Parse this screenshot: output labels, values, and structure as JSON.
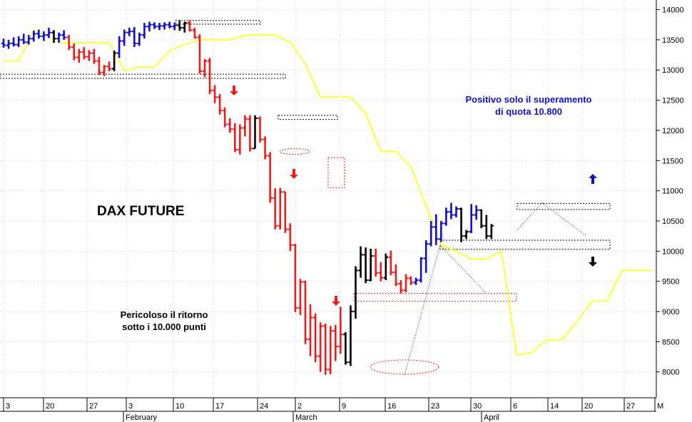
{
  "chart_data": {
    "type": "ohlc",
    "title": "DAX FUTURE",
    "yaxis": {
      "ticks": [
        8000,
        8500,
        9000,
        9500,
        10000,
        10500,
        11000,
        11500,
        12000,
        12500,
        13000,
        13500,
        14000
      ],
      "ylim": [
        7550,
        14070
      ],
      "position": "right"
    },
    "xaxis": {
      "day_ticks": [
        "3",
        "20",
        "27",
        "3",
        "10",
        "17",
        "24",
        "2",
        "9",
        "16",
        "23",
        "30",
        "6",
        "14",
        "20",
        "27",
        "M"
      ],
      "month_labels": [
        "February",
        "March",
        "April"
      ]
    },
    "grid": true,
    "colors": {
      "up": "#1010cc",
      "down": "#ee1c1c",
      "neutral": "#000000",
      "stop_line": "#ffff33"
    },
    "annotations": [
      {
        "id": "note-positive",
        "text": [
          "Positivo solo il superamento",
          "di quota 10.800"
        ],
        "color": "#1010cc"
      },
      {
        "id": "note-danger",
        "text": [
          "Pericoloso il ritorno",
          "sotto i 10.000 punti"
        ],
        "color": "#000000"
      }
    ],
    "series": [
      {
        "color": "blue",
        "bars": [
          [
            13440,
            13520,
            13370,
            13410
          ],
          [
            13410,
            13500,
            13350,
            13440
          ],
          [
            13440,
            13540,
            13390,
            13420
          ],
          [
            13420,
            13560,
            13380,
            13500
          ],
          [
            13500,
            13600,
            13430,
            13460
          ],
          [
            13460,
            13580,
            13420,
            13520
          ],
          [
            13520,
            13650,
            13470,
            13600
          ],
          [
            13600,
            13670,
            13520,
            13560
          ],
          [
            13560,
            13640,
            13480,
            13580
          ],
          [
            13580,
            13700,
            13530,
            13620
          ]
        ]
      },
      {
        "color": "black",
        "bars": [
          [
            13620,
            13660,
            13450,
            13520
          ]
        ]
      },
      {
        "color": "blue",
        "bars": [
          [
            13520,
            13620,
            13450,
            13580
          ],
          [
            13580,
            13660,
            13500,
            13540
          ]
        ]
      },
      {
        "color": "red",
        "bars": [
          [
            13540,
            13580,
            13330,
            13380
          ],
          [
            13380,
            13440,
            13160,
            13210
          ],
          [
            13210,
            13350,
            13120,
            13300
          ],
          [
            13300,
            13380,
            13180,
            13220
          ],
          [
            13220,
            13330,
            13150,
            13280
          ],
          [
            13280,
            13350,
            13100,
            13150
          ],
          [
            13150,
            13220,
            12920,
            12960
          ],
          [
            12960,
            13080,
            12900,
            13060
          ],
          [
            13060,
            13140,
            12980,
            13020
          ]
        ]
      },
      {
        "color": "black",
        "bars": [
          [
            13020,
            13320,
            12980,
            13280
          ]
        ]
      },
      {
        "color": "blue",
        "bars": [
          [
            13280,
            13560,
            13200,
            13480
          ],
          [
            13480,
            13670,
            13400,
            13620
          ],
          [
            13620,
            13700,
            13560,
            13640
          ],
          [
            13640,
            13710,
            13380,
            13440
          ],
          [
            13440,
            13620,
            13400,
            13580
          ],
          [
            13580,
            13780,
            13520,
            13720
          ],
          [
            13720,
            13800,
            13640,
            13750
          ],
          [
            13750,
            13790,
            13680,
            13720
          ],
          [
            13720,
            13780,
            13660,
            13730
          ],
          [
            13730,
            13790,
            13670,
            13750
          ],
          [
            13750,
            13800,
            13690,
            13720
          ],
          [
            13720,
            13780,
            13660,
            13740
          ]
        ]
      },
      {
        "color": "black",
        "bars": [
          [
            13740,
            13820,
            13650,
            13700
          ],
          [
            13700,
            13800,
            13620,
            13780
          ]
        ]
      },
      {
        "color": "red",
        "bars": [
          [
            13780,
            13820,
            13640,
            13660
          ],
          [
            13660,
            13700,
            13520,
            13540
          ],
          [
            13540,
            13590,
            12940,
            12980
          ],
          [
            12980,
            13180,
            12880,
            13150
          ],
          [
            13150,
            13200,
            12600,
            12660
          ],
          [
            12660,
            12750,
            12450,
            12550
          ],
          [
            12550,
            12600,
            12260,
            12330
          ],
          [
            12330,
            12380,
            12050,
            12100
          ],
          [
            12100,
            12200,
            11960,
            12020
          ],
          [
            12020,
            12120,
            11640,
            11680
          ],
          [
            11680,
            12100,
            11600,
            12040
          ],
          [
            12040,
            12250,
            11900,
            12190
          ],
          [
            12190,
            12250,
            11650,
            11700
          ]
        ]
      },
      {
        "color": "black",
        "bars": [
          [
            11700,
            12250,
            11700,
            12200
          ]
        ]
      },
      {
        "color": "red",
        "bars": [
          [
            12200,
            12230,
            11800,
            11850
          ],
          [
            11850,
            11900,
            11520,
            11580
          ],
          [
            11580,
            11640,
            10800,
            10880
          ],
          [
            10880,
            11040,
            10360,
            10420
          ],
          [
            10420,
            11050,
            10360,
            10980
          ],
          [
            10980,
            10980,
            10300,
            10360
          ],
          [
            10360,
            10460,
            10000,
            10100
          ],
          [
            10100,
            10120,
            8990,
            9060
          ],
          [
            9060,
            9540,
            8940,
            9490
          ],
          [
            9490,
            9510,
            8460,
            8540
          ],
          [
            8540,
            9120,
            8260,
            8900
          ],
          [
            8900,
            8970,
            8160,
            8260
          ],
          [
            8260,
            8820,
            8000,
            8760
          ],
          [
            8760,
            8800,
            7950,
            8040
          ],
          [
            8040,
            8760,
            7960,
            8680
          ],
          [
            8680,
            8780,
            8180,
            8420
          ],
          [
            8420,
            9080,
            8300,
            8620
          ]
        ]
      },
      {
        "color": "black",
        "bars": [
          [
            8620,
            8660,
            8120,
            8160
          ],
          [
            8160,
            9100,
            8100,
            9000
          ],
          [
            9000,
            9750,
            8880,
            9680
          ],
          [
            9680,
            10080,
            9560,
            9940
          ],
          [
            9940,
            10060,
            9470,
            9520
          ],
          [
            9520,
            10040,
            9500,
            9920
          ]
        ]
      },
      {
        "color": "red",
        "bars": [
          [
            9920,
            10040,
            9580,
            9640
          ],
          [
            9640,
            9820,
            9500,
            9560
          ]
        ]
      },
      {
        "color": "black",
        "bars": [
          [
            9560,
            9960,
            9520,
            9900
          ]
        ]
      },
      {
        "color": "red",
        "bars": [
          [
            9900,
            10010,
            9600,
            9650
          ],
          [
            9650,
            9780,
            9420,
            9460
          ],
          [
            9460,
            9520,
            9300,
            9350
          ],
          [
            9350,
            9620,
            9320,
            9550
          ],
          [
            9550,
            9580,
            9440,
            9480
          ]
        ]
      },
      {
        "color": "blue",
        "bars": [
          [
            9480,
            9560,
            9440,
            9520
          ],
          [
            9520,
            9900,
            9480,
            9880
          ],
          [
            9880,
            10180,
            9640,
            10120
          ],
          [
            10120,
            10500,
            10080,
            10400
          ],
          [
            10400,
            10610,
            10100,
            10200
          ],
          [
            10200,
            10500,
            10150,
            10460
          ]
        ]
      },
      {
        "color": "blue",
        "bars": [
          [
            10460,
            10720,
            10420,
            10650
          ],
          [
            10650,
            10800,
            10530,
            10600
          ],
          [
            10600,
            10740,
            10560,
            10700
          ]
        ]
      },
      {
        "color": "black",
        "bars": [
          [
            10700,
            10720,
            10150,
            10250
          ],
          [
            10250,
            10350,
            10200,
            10320
          ]
        ]
      },
      {
        "color": "blue",
        "bars": [
          [
            10320,
            10780,
            10300,
            10600
          ],
          [
            10600,
            10760,
            10520,
            10680
          ]
        ]
      },
      {
        "color": "black",
        "bars": [
          [
            10680,
            10690,
            10380,
            10420
          ],
          [
            10420,
            10600,
            10200,
            10250
          ],
          [
            10250,
            10450,
            10200,
            10420
          ]
        ]
      }
    ],
    "stop_line": [
      [
        13150,
        13150
      ],
      [
        13150,
        13650
      ],
      [
        13650,
        13550
      ],
      [
        13550,
        13450
      ],
      [
        13450,
        13450
      ],
      [
        13450,
        13450
      ],
      [
        13450,
        13450
      ],
      [
        13450,
        13000
      ],
      [
        13000,
        13050
      ],
      [
        13050,
        13050
      ],
      [
        13050,
        13320
      ],
      [
        13320,
        13420
      ],
      [
        13420,
        13500
      ],
      [
        13500,
        13500
      ],
      [
        13500,
        13500
      ],
      [
        13500,
        13580
      ],
      [
        13580,
        13580
      ],
      [
        13580,
        13580
      ],
      [
        13580,
        13460
      ],
      [
        13460,
        13100
      ],
      [
        13100,
        12550
      ],
      [
        12550,
        12550
      ],
      [
        12550,
        12550
      ],
      [
        12550,
        12280
      ],
      [
        12280,
        11650
      ],
      [
        11650,
        11650
      ],
      [
        11650,
        11400
      ],
      [
        11400,
        10750
      ],
      [
        10750,
        10100
      ],
      [
        10100,
        10000
      ],
      [
        10000,
        9870
      ],
      [
        9870,
        9870
      ],
      [
        9870,
        10000
      ],
      [
        10000,
        8280
      ],
      [
        8280,
        8320
      ],
      [
        8320,
        8530
      ],
      [
        8530,
        8530
      ],
      [
        8530,
        8830
      ],
      [
        8830,
        9170
      ],
      [
        9170,
        9180
      ],
      [
        9180,
        9680
      ],
      [
        9680,
        9680
      ],
      [
        9680,
        9680
      ]
    ],
    "boxes": [
      {
        "name": "resistance-13800",
        "y": [
          13760,
          13820
        ]
      },
      {
        "name": "support-12900",
        "y": [
          12860,
          12930
        ]
      },
      {
        "name": "box-12200",
        "y": [
          12180,
          12250
        ]
      },
      {
        "name": "resistance-10800",
        "y": [
          10690,
          10790
        ]
      },
      {
        "name": "support-10000",
        "y": [
          10030,
          10180
        ]
      },
      {
        "name": "support-9200",
        "y": [
          9170,
          9300
        ]
      }
    ]
  }
}
